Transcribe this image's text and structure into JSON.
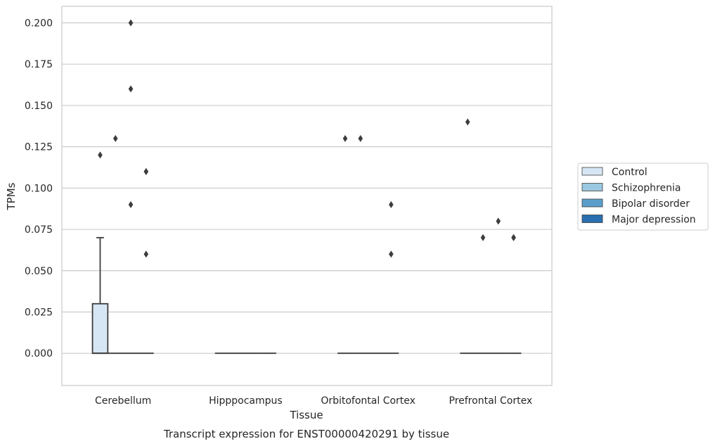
{
  "chart_data": {
    "type": "boxplot",
    "title": "Transcript expression for ENST00000420291 by tissue",
    "xlabel": "Tissue",
    "ylabel": "TPMs",
    "ylim": [
      -0.0195,
      0.21
    ],
    "yticks": [
      "0.000",
      "0.025",
      "0.050",
      "0.075",
      "0.100",
      "0.125",
      "0.150",
      "0.175",
      "0.200"
    ],
    "grid": true,
    "legend_position": "right",
    "categories": [
      "Cerebellum",
      "Hipppocampus",
      "Orbitofontal Cortex",
      "Prefrontal Cortex"
    ],
    "series": [
      {
        "name": "Control",
        "color": "#d6e6f4",
        "boxes": [
          {
            "q1": 0,
            "median": 0,
            "q3": 0.03,
            "whisker_low": 0,
            "whisker_high": 0.07,
            "outliers": [
              0.12
            ]
          },
          {
            "q1": 0,
            "median": 0,
            "q3": 0,
            "whisker_low": 0,
            "whisker_high": 0,
            "outliers": []
          },
          {
            "q1": 0,
            "median": 0,
            "q3": 0,
            "whisker_low": 0,
            "whisker_high": 0,
            "outliers": [
              0.13
            ]
          },
          {
            "q1": 0,
            "median": 0,
            "q3": 0,
            "whisker_low": 0,
            "whisker_high": 0,
            "outliers": [
              0.14
            ]
          }
        ]
      },
      {
        "name": "Schizophrenia",
        "color": "#9ac8e0",
        "boxes": [
          {
            "q1": 0,
            "median": 0,
            "q3": 0,
            "whisker_low": 0,
            "whisker_high": 0,
            "outliers": [
              0.13
            ]
          },
          {
            "q1": 0,
            "median": 0,
            "q3": 0,
            "whisker_low": 0,
            "whisker_high": 0,
            "outliers": []
          },
          {
            "q1": 0,
            "median": 0,
            "q3": 0,
            "whisker_low": 0,
            "whisker_high": 0,
            "outliers": [
              0.13
            ]
          },
          {
            "q1": 0,
            "median": 0,
            "q3": 0,
            "whisker_low": 0,
            "whisker_high": 0,
            "outliers": [
              0.07
            ]
          }
        ]
      },
      {
        "name": "Bipolar disorder",
        "color": "#5a9fcb",
        "boxes": [
          {
            "q1": 0,
            "median": 0,
            "q3": 0,
            "whisker_low": 0,
            "whisker_high": 0,
            "outliers": [
              0.2,
              0.16,
              0.09
            ]
          },
          {
            "q1": 0,
            "median": 0,
            "q3": 0,
            "whisker_low": 0,
            "whisker_high": 0,
            "outliers": []
          },
          {
            "q1": 0,
            "median": 0,
            "q3": 0,
            "whisker_low": 0,
            "whisker_high": 0,
            "outliers": []
          },
          {
            "q1": 0,
            "median": 0,
            "q3": 0,
            "whisker_low": 0,
            "whisker_high": 0,
            "outliers": [
              0.08
            ]
          }
        ]
      },
      {
        "name": "Major depression",
        "color": "#2a6fb0",
        "boxes": [
          {
            "q1": 0,
            "median": 0,
            "q3": 0,
            "whisker_low": 0,
            "whisker_high": 0,
            "outliers": [
              0.11,
              0.11,
              0.06
            ]
          },
          {
            "q1": 0,
            "median": 0,
            "q3": 0,
            "whisker_low": 0,
            "whisker_high": 0,
            "outliers": []
          },
          {
            "q1": 0,
            "median": 0,
            "q3": 0,
            "whisker_low": 0,
            "whisker_high": 0,
            "outliers": [
              0.09,
              0.06
            ]
          },
          {
            "q1": 0,
            "median": 0,
            "q3": 0,
            "whisker_low": 0,
            "whisker_high": 0,
            "outliers": [
              0.07,
              0.07
            ]
          }
        ]
      }
    ]
  }
}
